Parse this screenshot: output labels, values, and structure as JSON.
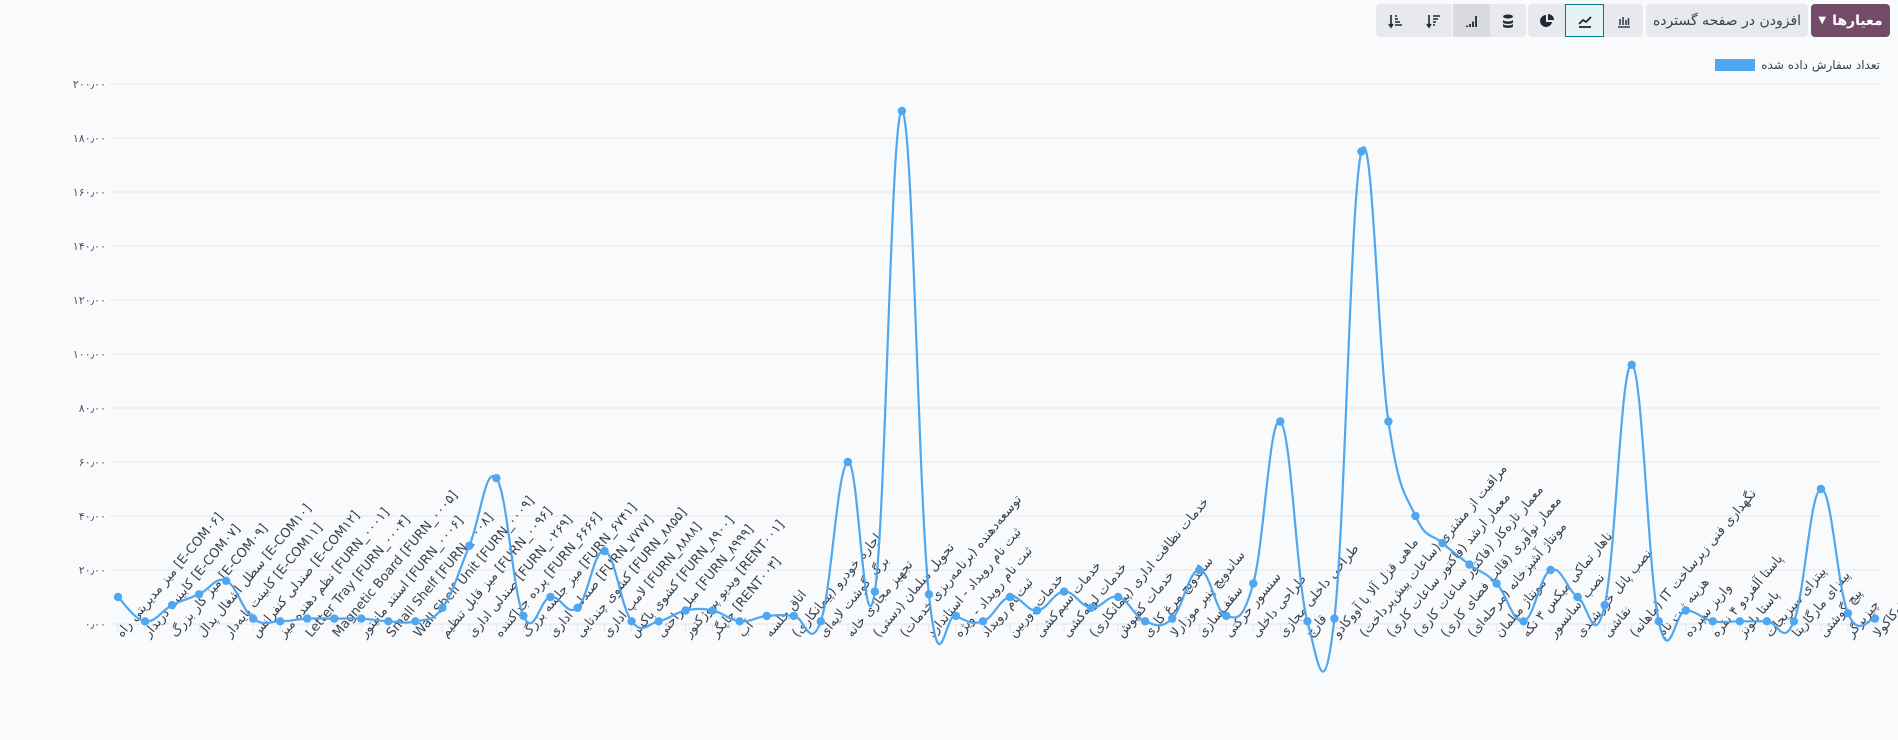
{
  "toolbar": {
    "criteria_label": "معیارها",
    "add_to_spreadsheet_label": "افزودن در صفحه گسترده",
    "chart_types": [
      {
        "name": "bar",
        "icon": "bar-chart-icon",
        "active": false
      },
      {
        "name": "line",
        "icon": "line-chart-icon",
        "active": true
      },
      {
        "name": "pie",
        "icon": "pie-chart-icon",
        "active": false
      }
    ],
    "options": [
      {
        "name": "stacked",
        "icon": "database-stack-icon",
        "active": false
      },
      {
        "name": "cumulative",
        "icon": "cumulative-bars-icon",
        "active": true
      },
      {
        "name": "descending",
        "icon": "sort-descending-icon",
        "active": false
      },
      {
        "name": "ascending",
        "icon": "sort-ascending-icon",
        "active": false
      }
    ]
  },
  "colors": {
    "series": "#4ea7f0",
    "brand": "#714b67",
    "active": "#017e84"
  },
  "chart_data": {
    "type": "line",
    "legend_position": "top-right",
    "grid": true,
    "ylim": [
      0,
      200
    ],
    "yticks": [
      "۰٫۰۰",
      "۲۰٫۰۰",
      "۴۰٫۰۰",
      "۶۰٫۰۰",
      "۸۰٫۰۰",
      "۱۰۰٫۰۰",
      "۱۲۰٫۰۰",
      "۱۴۰٫۰۰",
      "۱۶۰٫۰۰",
      "۱۸۰٫۰۰",
      "۲۰۰٫۰۰"
    ],
    "categories": [
      "[E-COM۰۶] میز مدیریتی راه",
      "[E-COM۰۷] کابینت دربدار",
      "[E-COM۰۹] میز کار بزرگ",
      "[E-COM۱۰] سطل اشغال پدال",
      "[E-COM۱۱] کابینت پایه‌دار",
      "[E-COM۱۲] صندلی کنفرانس",
      "[FURN_۰۰۰۱] نظم دهنده میز",
      "[FURN_۰۰۰۴] Letter Tray",
      "[FURN_۰۰۰۵] Magnetic Board",
      "[FURN_۰۰۰۶] استند مانیتور",
      "[FURN_۰۰۰۸] Small Shelf",
      "[FURN_۰۰۰۹] Wall Shelf Unit",
      "[FURN_۰۰۹۶] میز قابل تنظیم",
      "[FURN_۰۲۶۹] صندلی اداری",
      "[FURN_۶۶۶۶] پرده جداکننده",
      "[FURN_۶۷۴۱] میز جلسه بزرگ",
      "[FURN_۷۷۷۷] صندلی اداری",
      "[FURN_۸۸۵۵] کشوی چندتایی",
      "[FURN_۸۸۸۸] لامپ اداری",
      "[FURN_۸۹۰۰] کشوی باکس",
      "[FURN_۸۹۹۹] مبل راحتی",
      "[RENT۰۰۱] ویدیو پروژکتور",
      "[RENT۰۰۳] چاپگر",
      "آب",
      "اتاق جلسه",
      "اجاره خودرو (پیمانکاری)",
      "برگر گوشت لایه‌ای",
      "تجهیز مجازی خانه",
      "تحویل مبلمان (دستی)",
      "توسعه‌دهنده (برنامه‌ریزی خدمات)",
      "ثبت نام رویداد - استاندارد",
      "ثبت نام رویداد - ویژه",
      "ثبت‌نام رویداد",
      "خدمات دوربین",
      "خدمات سیم‌کشی",
      "خدمات لوله‌کشی",
      "خدمات نظافت اداری (پیمانکاری)",
      "خدمات کفپوش",
      "ساندویچ مرغ کاری",
      "ساندویچ پنیر موزارلا",
      "سقف‌سازی",
      "سنسور حرکتی",
      "طراحی داخلی",
      "طراحی داخلی مجازی",
      "قارچ",
      "ماهی قزل آلا با آووکادو",
      "مراقبت از مشتری (ساعات پیش‌پرداخت)",
      "معمار ارشد (فاکتور ساعات کاری)",
      "معمار تازه‌کار (فاکتور ساعات کاری)",
      "معمار نوآوری (قالب فضای کاری)",
      "مونتاژ آشپزخانه (مرحله‌ای)",
      "مونتاژ مبلمان",
      "ناهار تماکی میکس ۳ تکه",
      "نصب آسانسور",
      "نصب پانل خورشیدی",
      "نقاشی",
      "نگهداری فنی زیرساخت IT (ماهانه)",
      "هزینه ثبت نام",
      "واریز سپرده",
      "پاستا آلفردو ۴ نفره",
      "پاستا بلونز",
      "پیتزای سبزیجات",
      "پیتزای مارگاریتا",
      "پیچ گوشتی",
      "چیزبرگر",
      "کوکاکولا"
    ],
    "series": [
      {
        "name": "تعداد سفارش داده شده",
        "values": [
          10,
          1,
          7,
          11,
          16,
          2,
          1,
          2,
          2,
          2,
          1,
          1,
          6,
          29,
          54,
          3,
          10,
          6,
          27,
          1,
          1,
          5,
          5,
          1,
          3,
          3,
          1,
          60,
          12,
          190,
          11,
          3,
          1,
          10,
          5,
          12,
          6,
          10,
          1,
          2,
          20,
          3,
          15,
          75,
          1,
          2,
          175,
          75,
          40,
          30,
          22,
          15,
          1,
          20,
          10,
          7,
          96,
          1,
          5,
          1,
          1,
          1,
          1,
          50,
          4,
          2
        ]
      }
    ]
  }
}
